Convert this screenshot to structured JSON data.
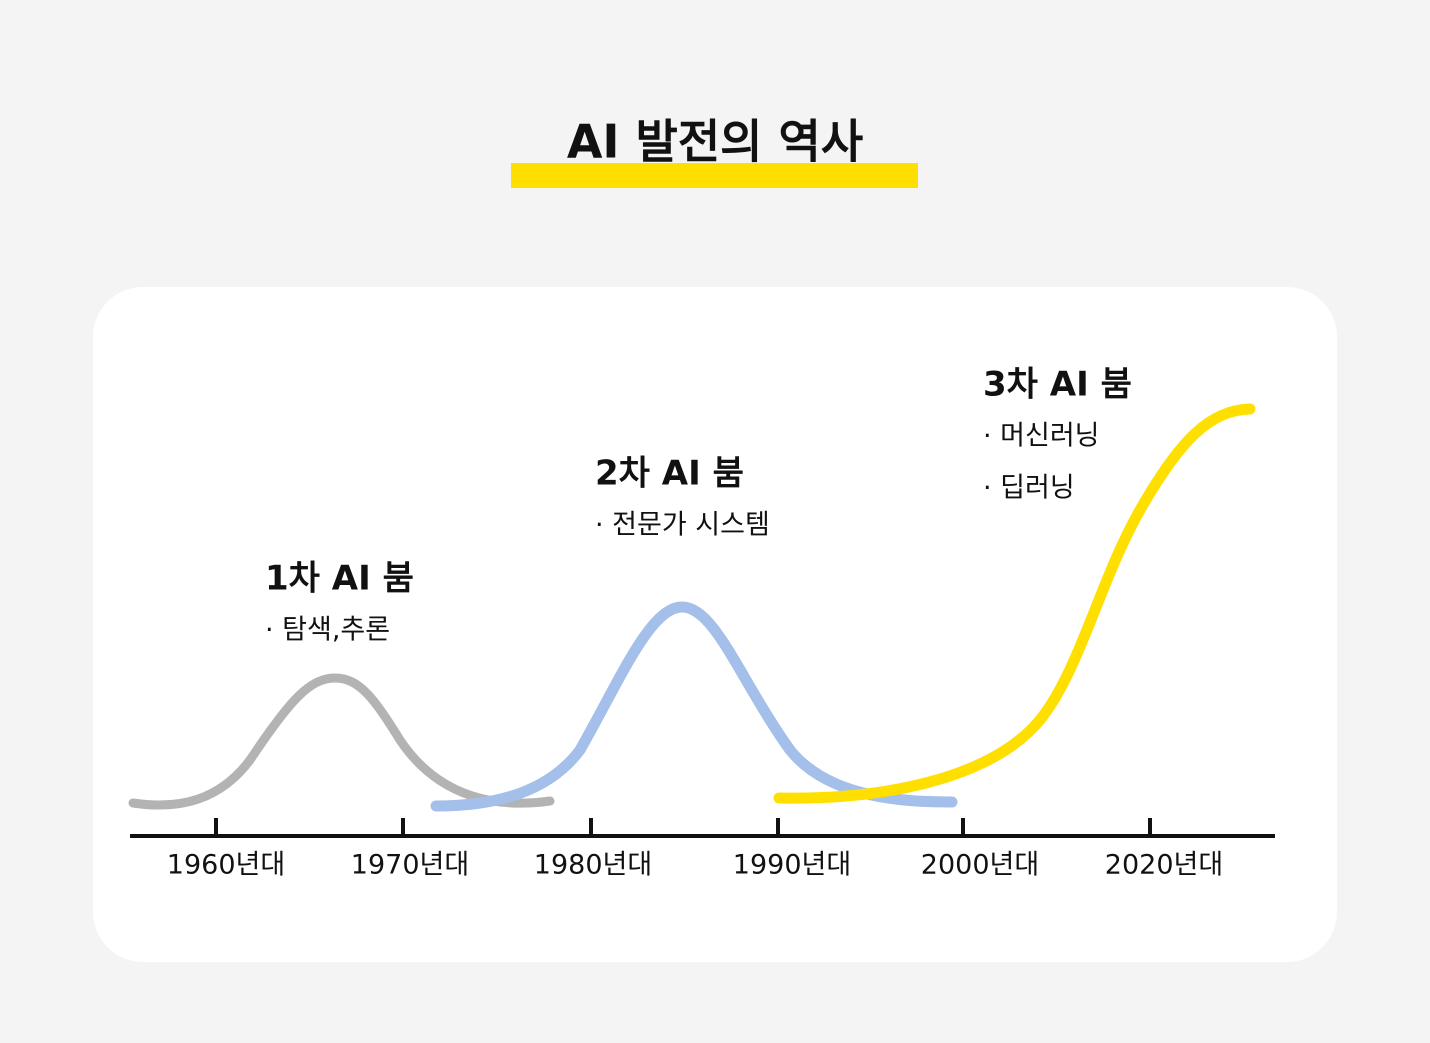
{
  "title": "AI 발전의 역사",
  "booms": [
    {
      "title": "1차 AI 붐",
      "items": [
        "· 탐색,추론"
      ]
    },
    {
      "title": "2차 AI 붐",
      "items": [
        "· 전문가 시스템"
      ]
    },
    {
      "title": "3차 AI 붐",
      "items": [
        "· 머신러닝",
        "· 딥러닝"
      ]
    }
  ],
  "axis_labels": [
    "1960년대",
    "1970년대",
    "1980년대",
    "1990년대",
    "2000년대",
    "2020년대"
  ]
}
